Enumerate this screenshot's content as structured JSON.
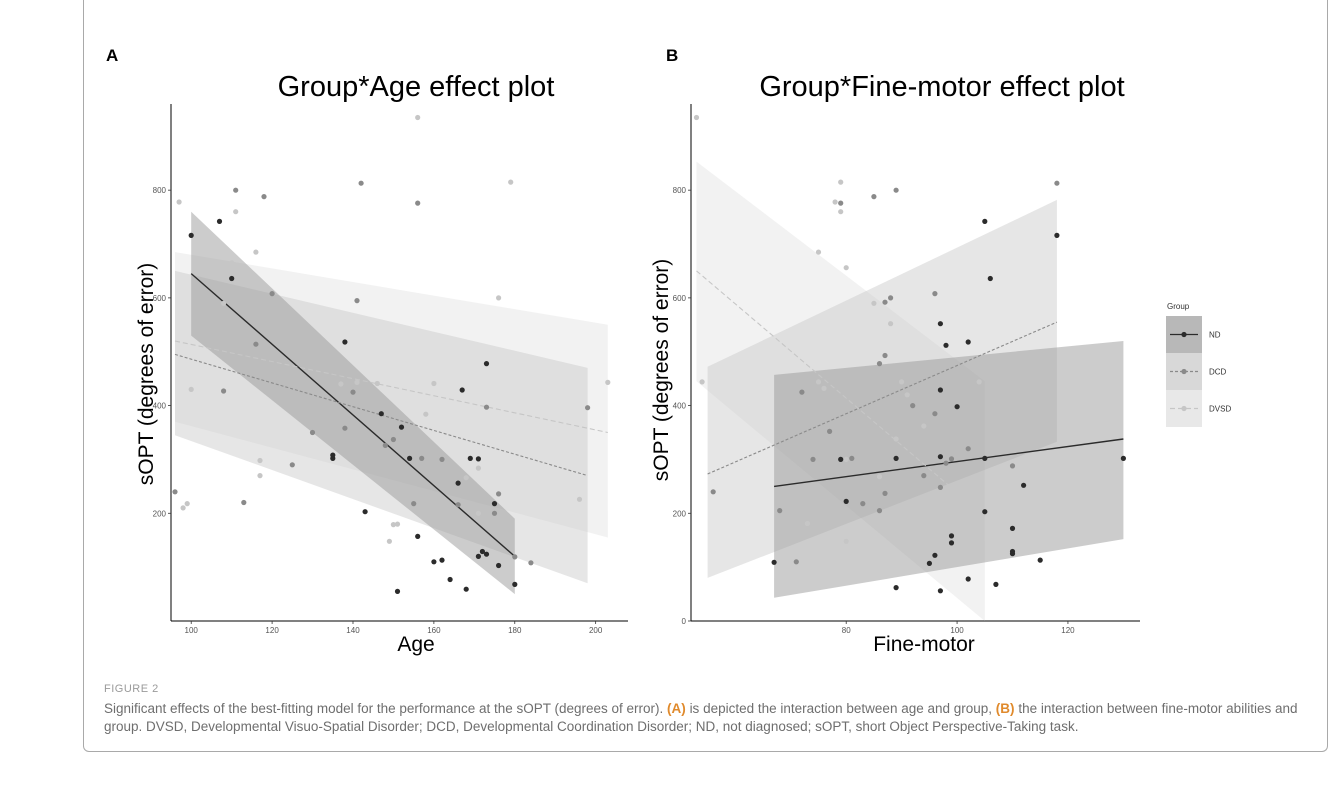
{
  "figure": {
    "label": "FIGURE 2",
    "caption": {
      "intro": "Significant effects of the best-fitting model for the performance at the sOPT (degrees of error).",
      "ref_a": "(A)",
      "text_a": "is depicted the interaction between age and group,",
      "ref_b": "(B)",
      "text_b": "the interaction between fine-motor abilities and group. DVSD, Developmental Visuo-Spatial Disorder; DCD, Developmental Coordination Disorder; ND, not diagnosed; sOPT, short Object Perspective-Taking task."
    }
  },
  "legend": {
    "title": "Group",
    "entries": [
      "ND",
      "DCD",
      "DVSD"
    ]
  },
  "colors": {
    "ND": "#2b2b2b",
    "DCD": "#8a8a8a",
    "DVSD": "#c6c6c6",
    "band_ND": "#9a9a9a",
    "band_DCD": "#c8c8c8",
    "band_DVSD": "#dedede"
  },
  "chart_data": [
    {
      "panel": "A",
      "type": "scatter",
      "title": "Group*Age effect plot",
      "xlabel": "Age",
      "ylabel": "sOPT (degrees of error)",
      "xlim": [
        95,
        208
      ],
      "ylim": [
        0,
        960
      ],
      "xticks": [
        100,
        120,
        140,
        160,
        180,
        200
      ],
      "yticks": [
        200,
        400,
        600,
        800
      ],
      "grid": false,
      "lines": [
        {
          "name": "ND",
          "x": [
            100,
            180
          ],
          "y": [
            645,
            120
          ],
          "lower": [
            530,
            50
          ],
          "upper": [
            760,
            190
          ]
        },
        {
          "name": "DCD",
          "x": [
            96,
            198
          ],
          "y": [
            495,
            270
          ],
          "lower": [
            345,
            70
          ],
          "upper": [
            650,
            470
          ]
        },
        {
          "name": "DVSD",
          "x": [
            96,
            203
          ],
          "y": [
            520,
            350
          ],
          "lower": [
            370,
            155
          ],
          "upper": [
            685,
            550
          ]
        }
      ],
      "series": [
        {
          "name": "ND",
          "points": [
            [
              100,
              716
            ],
            [
              107,
              742
            ],
            [
              110,
              636
            ],
            [
              138,
              518
            ],
            [
              135,
              302
            ],
            [
              135,
              308
            ],
            [
              143,
              203
            ],
            [
              147,
              385
            ],
            [
              152,
              360
            ],
            [
              154,
              302
            ],
            [
              156,
              157
            ],
            [
              160,
              110
            ],
            [
              162,
              113
            ],
            [
              164,
              77
            ],
            [
              166,
              256
            ],
            [
              167,
              429
            ],
            [
              168,
              59
            ],
            [
              169,
              302
            ],
            [
              171,
              120
            ],
            [
              171,
              301
            ],
            [
              172,
              129
            ],
            [
              173,
              478
            ],
            [
              173,
              124
            ],
            [
              175,
              218
            ],
            [
              176,
              103
            ],
            [
              180,
              68
            ],
            [
              151,
              55
            ]
          ]
        },
        {
          "name": "DCD",
          "points": [
            [
              96,
              240
            ],
            [
              108,
              427
            ],
            [
              111,
              800
            ],
            [
              113,
              220
            ],
            [
              118,
              788
            ],
            [
              120,
              608
            ],
            [
              125,
              290
            ],
            [
              141,
              595
            ],
            [
              142,
              813
            ],
            [
              156,
              776
            ],
            [
              162,
              300
            ],
            [
              138,
              358
            ],
            [
              140,
              425
            ],
            [
              148,
              326
            ],
            [
              150,
              337
            ],
            [
              155,
              218
            ],
            [
              157,
              302
            ],
            [
              166,
              216
            ],
            [
              175,
              200
            ],
            [
              180,
              119
            ],
            [
              184,
              108
            ],
            [
              198,
              396
            ],
            [
              173,
              397
            ],
            [
              176,
              236
            ],
            [
              130,
              350
            ],
            [
              116,
              514
            ]
          ]
        },
        {
          "name": "DVSD",
          "points": [
            [
              97,
              778
            ],
            [
              98,
              210
            ],
            [
              99,
              218
            ],
            [
              111,
              760
            ],
            [
              116,
              685
            ],
            [
              117,
              298
            ],
            [
              117,
              270
            ],
            [
              156,
              935
            ],
            [
              179,
              815
            ],
            [
              176,
              600
            ],
            [
              196,
              226
            ],
            [
              203,
              443
            ],
            [
              150,
              179
            ],
            [
              151,
              180
            ],
            [
              149,
              148
            ],
            [
              146,
              441
            ],
            [
              160,
              441
            ],
            [
              171,
              200
            ],
            [
              171,
              284
            ],
            [
              168,
              266
            ],
            [
              158,
              384
            ],
            [
              137,
              440
            ],
            [
              141,
              443
            ],
            [
              108,
              590
            ],
            [
              110,
              665
            ],
            [
              100,
              430
            ]
          ]
        }
      ]
    },
    {
      "panel": "B",
      "type": "scatter",
      "title": "Group*Fine-motor effect plot",
      "xlabel": "Fine-motor",
      "ylabel": "sOPT (degrees of error)",
      "xlim": [
        52,
        133
      ],
      "ylim": [
        0,
        960
      ],
      "xticks": [
        80,
        100,
        120
      ],
      "yticks": [
        0,
        200,
        400,
        600,
        800
      ],
      "grid": false,
      "lines": [
        {
          "name": "ND",
          "x": [
            67,
            130
          ],
          "y": [
            250,
            338
          ],
          "lower": [
            43,
            152
          ],
          "upper": [
            457,
            520
          ]
        },
        {
          "name": "DCD",
          "x": [
            55,
            118
          ],
          "y": [
            273,
            555
          ],
          "lower": [
            80,
            333
          ],
          "upper": [
            472,
            782
          ]
        },
        {
          "name": "DVSD",
          "x": [
            53,
            105
          ],
          "y": [
            650,
            195
          ],
          "lower": [
            445,
            0
          ],
          "upper": [
            853,
            445
          ]
        }
      ],
      "series": [
        {
          "name": "ND",
          "points": [
            [
              67,
              109
            ],
            [
              79,
              300
            ],
            [
              80,
              222
            ],
            [
              89,
              62
            ],
            [
              89,
              302
            ],
            [
              95,
              107
            ],
            [
              96,
              122
            ],
            [
              97,
              56
            ],
            [
              97,
              429
            ],
            [
              97,
              552
            ],
            [
              97,
              305
            ],
            [
              98,
              512
            ],
            [
              99,
              145
            ],
            [
              99,
              158
            ],
            [
              100,
              398
            ],
            [
              102,
              518
            ],
            [
              102,
              78
            ],
            [
              105,
              742
            ],
            [
              105,
              302
            ],
            [
              105,
              203
            ],
            [
              106,
              636
            ],
            [
              107,
              68
            ],
            [
              110,
              172
            ],
            [
              110,
              125
            ],
            [
              110,
              129
            ],
            [
              112,
              252
            ],
            [
              115,
              113
            ],
            [
              118,
              716
            ],
            [
              130,
              302
            ]
          ]
        },
        {
          "name": "DCD",
          "points": [
            [
              56,
              240
            ],
            [
              68,
              205
            ],
            [
              71,
              110
            ],
            [
              72,
              425
            ],
            [
              74,
              300
            ],
            [
              77,
              352
            ],
            [
              79,
              776
            ],
            [
              81,
              302
            ],
            [
              83,
              218
            ],
            [
              85,
              788
            ],
            [
              86,
              205
            ],
            [
              86,
              478
            ],
            [
              87,
              237
            ],
            [
              87,
              493
            ],
            [
              88,
              600
            ],
            [
              89,
              800
            ],
            [
              92,
              400
            ],
            [
              94,
              270
            ],
            [
              96,
              385
            ],
            [
              96,
              608
            ],
            [
              97,
              248
            ],
            [
              98,
              293
            ],
            [
              99,
              301
            ],
            [
              102,
              320
            ],
            [
              110,
              288
            ],
            [
              118,
              813
            ],
            [
              87,
              592
            ]
          ]
        },
        {
          "name": "DVSD",
          "points": [
            [
              53,
              935
            ],
            [
              54,
              444
            ],
            [
              73,
              181
            ],
            [
              75,
              685
            ],
            [
              75,
              444
            ],
            [
              76,
              432
            ],
            [
              78,
              778
            ],
            [
              79,
              760
            ],
            [
              79,
              815
            ],
            [
              80,
              300
            ],
            [
              80,
              148
            ],
            [
              80,
              656
            ],
            [
              86,
              268
            ],
            [
              88,
              552
            ],
            [
              89,
              338
            ],
            [
              90,
              444
            ],
            [
              94,
              362
            ],
            [
              95,
              200
            ],
            [
              97,
              218
            ],
            [
              104,
              444
            ],
            [
              91,
              420
            ],
            [
              85,
              590
            ]
          ]
        }
      ]
    }
  ]
}
